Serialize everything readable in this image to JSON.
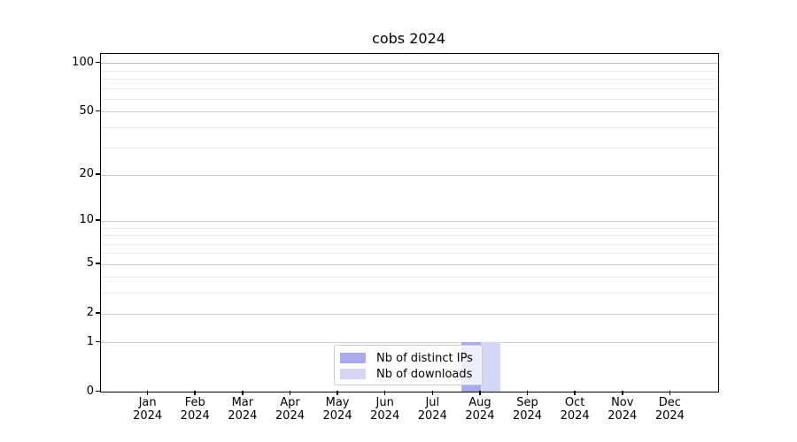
{
  "chart_data": {
    "type": "bar",
    "title": "cobs 2024",
    "xlabel": "",
    "ylabel": "",
    "categories": [
      "Jan",
      "Feb",
      "Mar",
      "Apr",
      "May",
      "Jun",
      "Jul",
      "Aug",
      "Sep",
      "Oct",
      "Nov",
      "Dec"
    ],
    "category_year": "2024",
    "series": [
      {
        "name": "Nb of distinct IPs",
        "color": "#aaaaee",
        "values": [
          0,
          0,
          0,
          0,
          0,
          0,
          0,
          1,
          0,
          0,
          0,
          0
        ]
      },
      {
        "name": "Nb of downloads",
        "color": "#d6d6f8",
        "values": [
          0,
          0,
          0,
          0,
          0,
          0,
          0,
          1,
          0,
          0,
          0,
          0
        ]
      }
    ],
    "y_scale": "log10(1+x)",
    "y_major_ticks": [
      0,
      1,
      2,
      5,
      10,
      20,
      50,
      100
    ],
    "y_minor_ticks": [
      3,
      4,
      6,
      7,
      8,
      9,
      30,
      40,
      60,
      70,
      80,
      90
    ],
    "y_axis_max": 114,
    "grid": true,
    "legend_position": "lower-center"
  }
}
